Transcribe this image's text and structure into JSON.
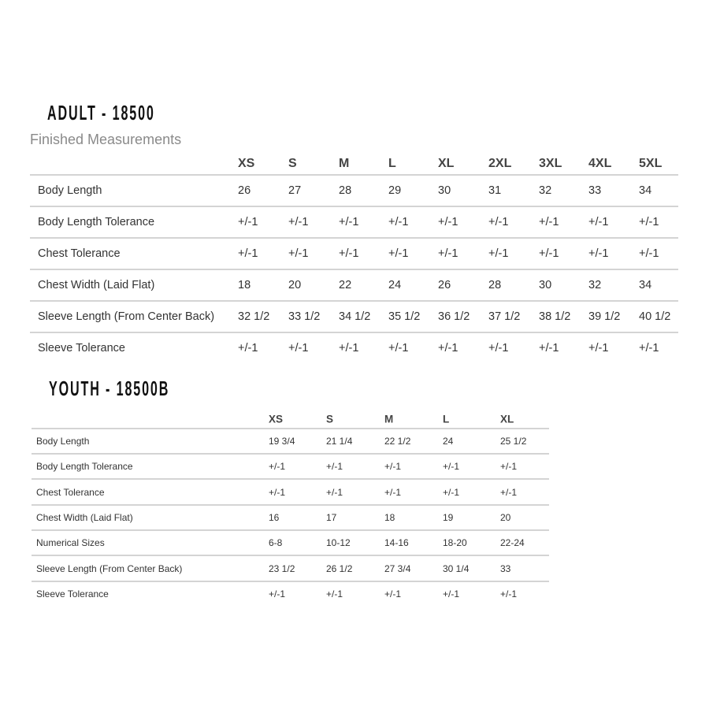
{
  "adult": {
    "title": "ADULT - 18500",
    "subtitle": "Finished Measurements",
    "sizes": [
      "XS",
      "S",
      "M",
      "L",
      "XL",
      "2XL",
      "3XL",
      "4XL",
      "5XL"
    ],
    "rows": [
      {
        "label": "Body Length",
        "values": [
          "26",
          "27",
          "28",
          "29",
          "30",
          "31",
          "32",
          "33",
          "34"
        ]
      },
      {
        "label": "Body Length Tolerance",
        "values": [
          "+/-1",
          "+/-1",
          "+/-1",
          "+/-1",
          "+/-1",
          "+/-1",
          "+/-1",
          "+/-1",
          "+/-1"
        ]
      },
      {
        "label": "Chest Tolerance",
        "values": [
          "+/-1",
          "+/-1",
          "+/-1",
          "+/-1",
          "+/-1",
          "+/-1",
          "+/-1",
          "+/-1",
          "+/-1"
        ]
      },
      {
        "label": "Chest Width (Laid Flat)",
        "values": [
          "18",
          "20",
          "22",
          "24",
          "26",
          "28",
          "30",
          "32",
          "34"
        ]
      },
      {
        "label": "Sleeve Length (From Center Back)",
        "values": [
          "32 1/2",
          "33 1/2",
          "34 1/2",
          "35 1/2",
          "36 1/2",
          "37 1/2",
          "38 1/2",
          "39 1/2",
          "40 1/2"
        ]
      },
      {
        "label": "Sleeve Tolerance",
        "values": [
          "+/-1",
          "+/-1",
          "+/-1",
          "+/-1",
          "+/-1",
          "+/-1",
          "+/-1",
          "+/-1",
          "+/-1"
        ]
      }
    ]
  },
  "youth": {
    "title": "YOUTH - 18500B",
    "sizes": [
      "XS",
      "S",
      "M",
      "L",
      "XL"
    ],
    "rows": [
      {
        "label": "Body Length",
        "values": [
          "19 3/4",
          "21 1/4",
          "22 1/2",
          "24",
          "25 1/2"
        ]
      },
      {
        "label": "Body Length Tolerance",
        "values": [
          "+/-1",
          "+/-1",
          "+/-1",
          "+/-1",
          "+/-1"
        ]
      },
      {
        "label": "Chest Tolerance",
        "values": [
          "+/-1",
          "+/-1",
          "+/-1",
          "+/-1",
          "+/-1"
        ]
      },
      {
        "label": "Chest Width (Laid Flat)",
        "values": [
          "16",
          "17",
          "18",
          "19",
          "20"
        ]
      },
      {
        "label": "Numerical Sizes",
        "values": [
          "6-8",
          "10-12",
          "14-16",
          "18-20",
          "22-24"
        ]
      },
      {
        "label": "Sleeve Length (From Center Back)",
        "values": [
          "23 1/2",
          "26 1/2",
          "27 3/4",
          "30 1/4",
          "33"
        ]
      },
      {
        "label": "Sleeve Tolerance",
        "values": [
          "+/-1",
          "+/-1",
          "+/-1",
          "+/-1",
          "+/-1"
        ]
      }
    ]
  }
}
